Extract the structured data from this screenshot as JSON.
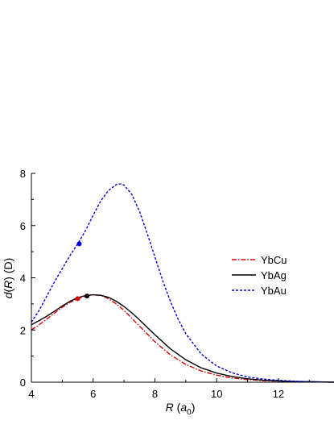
{
  "chart_data": {
    "type": "line",
    "xlabel": "R (a0)",
    "xlabel_parts": {
      "var": "R",
      "open": " (",
      "sym": "a",
      "sub": "0",
      "close": ")"
    },
    "ylabel": "d(R) (D)",
    "ylabel_parts": {
      "var": "d",
      "arg": "R",
      "unit": "(D)"
    },
    "xlim": [
      4,
      13.8
    ],
    "ylim": [
      0,
      8
    ],
    "xticks": [
      "4",
      "6",
      "8",
      "10",
      "12"
    ],
    "yticks": [
      "0",
      "2",
      "4",
      "6",
      "8"
    ],
    "legend": "center-right",
    "series": [
      {
        "name": "YbCu",
        "color": "#dd0000",
        "dash": "dash-dot",
        "marker": {
          "x": 5.5,
          "y": 3.2
        },
        "x": [
          4.0,
          4.25,
          4.5,
          4.75,
          5.0,
          5.25,
          5.5,
          5.75,
          6.0,
          6.25,
          6.5,
          6.75,
          7.0,
          7.25,
          7.5,
          7.75,
          8.0,
          8.5,
          9.0,
          9.5,
          10.0,
          10.5,
          11.0,
          11.5,
          12.0,
          12.5,
          13.0,
          13.8
        ],
        "y": [
          2.0,
          2.2,
          2.42,
          2.65,
          2.87,
          3.06,
          3.2,
          3.3,
          3.35,
          3.32,
          3.2,
          3.0,
          2.75,
          2.45,
          2.15,
          1.85,
          1.55,
          1.05,
          0.68,
          0.43,
          0.27,
          0.16,
          0.1,
          0.06,
          0.04,
          0.02,
          0.01,
          0.0
        ]
      },
      {
        "name": "YbAg",
        "color": "#000000",
        "dash": "solid",
        "marker": {
          "x": 5.8,
          "y": 3.3
        },
        "x": [
          4.0,
          4.25,
          4.5,
          4.75,
          5.0,
          5.25,
          5.5,
          5.75,
          6.0,
          6.25,
          6.5,
          6.75,
          7.0,
          7.25,
          7.5,
          7.75,
          8.0,
          8.5,
          9.0,
          9.5,
          10.0,
          10.5,
          11.0,
          11.5,
          12.0,
          12.5,
          13.0,
          13.8
        ],
        "y": [
          2.2,
          2.36,
          2.53,
          2.72,
          2.92,
          3.1,
          3.24,
          3.32,
          3.35,
          3.33,
          3.25,
          3.1,
          2.9,
          2.66,
          2.39,
          2.1,
          1.82,
          1.28,
          0.86,
          0.55,
          0.35,
          0.22,
          0.13,
          0.08,
          0.05,
          0.03,
          0.02,
          0.0
        ]
      },
      {
        "name": "YbAu",
        "color": "#0000dd",
        "dash": "dash",
        "marker": {
          "x": 5.55,
          "y": 5.3
        },
        "x": [
          4.0,
          4.25,
          4.5,
          4.75,
          5.0,
          5.25,
          5.5,
          5.75,
          6.0,
          6.25,
          6.5,
          6.75,
          6.9,
          7.0,
          7.25,
          7.5,
          7.75,
          8.0,
          8.25,
          8.5,
          8.75,
          9.0,
          9.5,
          10.0,
          10.5,
          11.0,
          11.5,
          12.0,
          12.5,
          13.0,
          13.8
        ],
        "y": [
          2.3,
          2.75,
          3.3,
          3.85,
          4.35,
          4.85,
          5.3,
          5.8,
          6.4,
          6.95,
          7.35,
          7.57,
          7.6,
          7.55,
          7.2,
          6.55,
          5.7,
          4.8,
          3.9,
          3.1,
          2.42,
          1.86,
          1.08,
          0.62,
          0.36,
          0.2,
          0.12,
          0.07,
          0.04,
          0.02,
          0.0
        ]
      }
    ]
  }
}
